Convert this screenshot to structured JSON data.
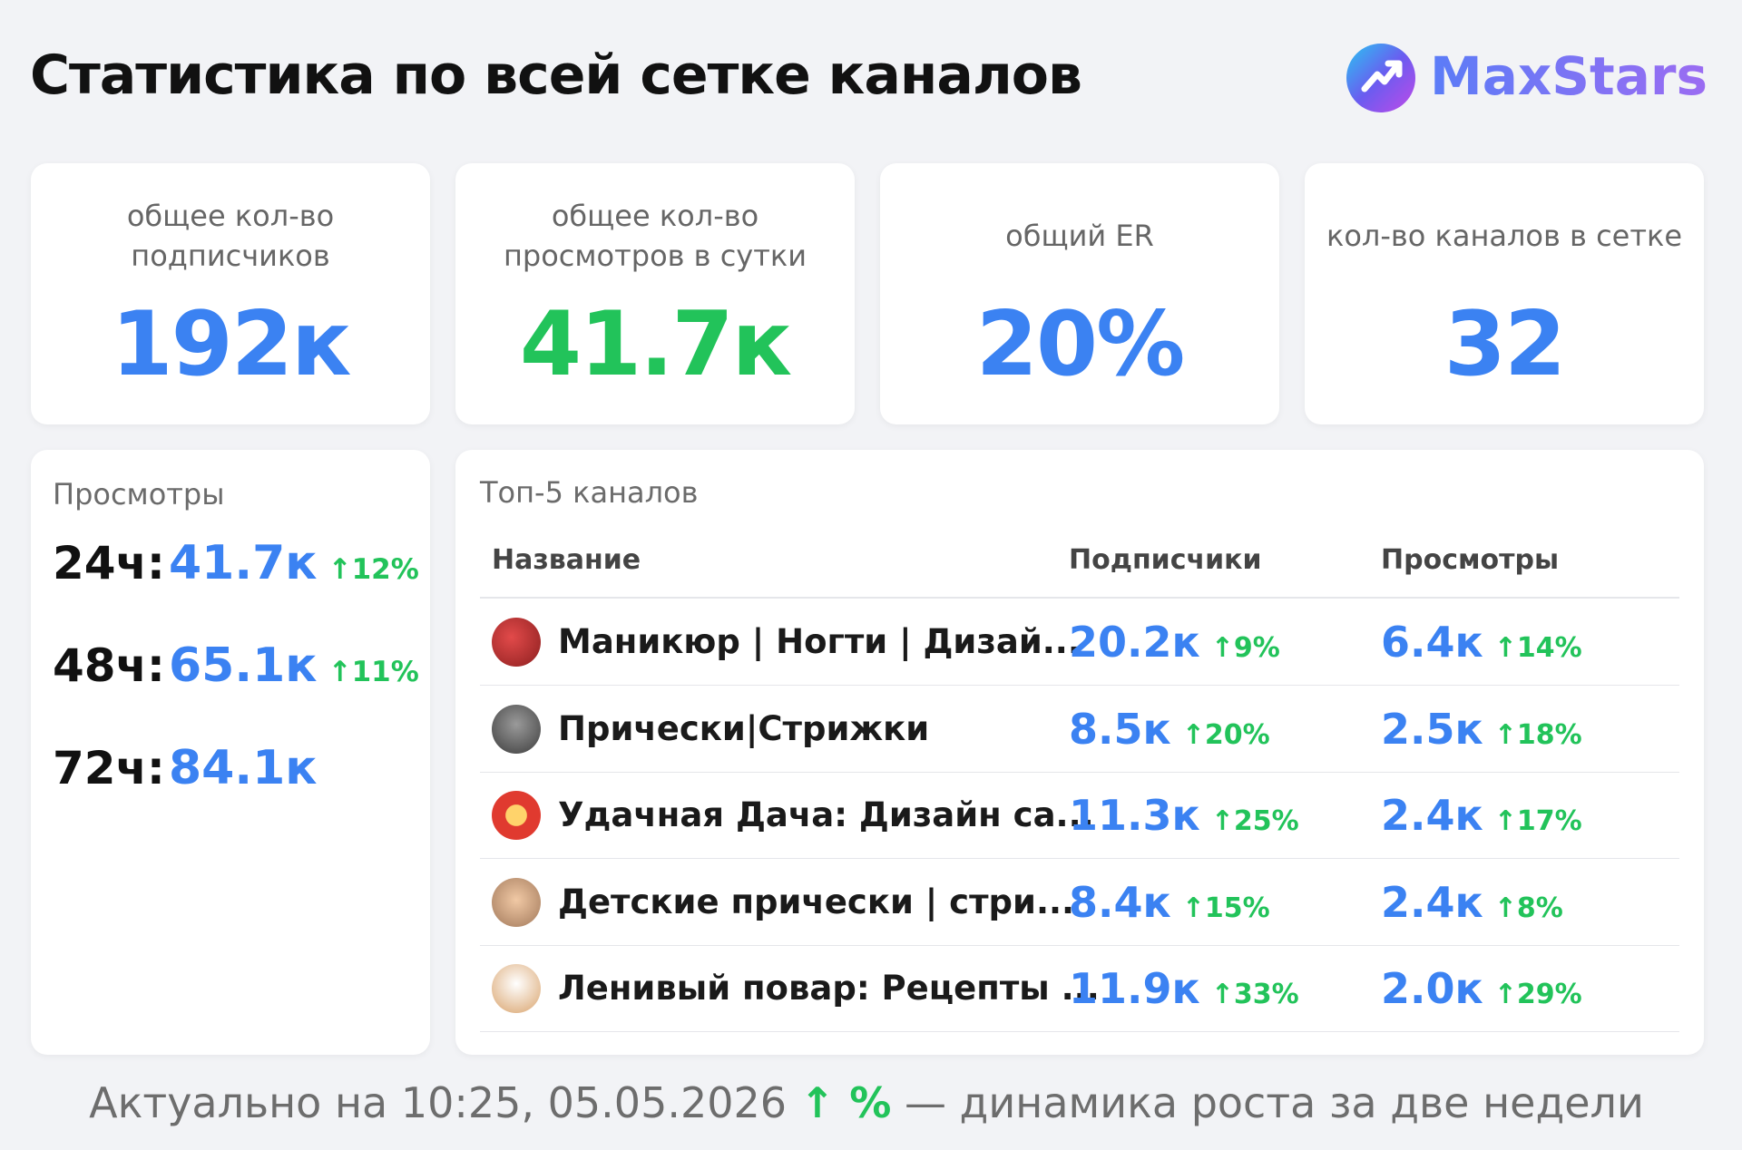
{
  "header": {
    "title": "Статистика по всей сетке каналов",
    "logo": "MaxStars"
  },
  "stats": [
    {
      "label": "общее кол-во подписчиков",
      "value": "192к"
    },
    {
      "label": "общее кол-во просмотров в сутки",
      "value": "41.7к"
    },
    {
      "label": "общий ER",
      "value": "20%"
    },
    {
      "label": "кол-во каналов в сетке",
      "value": "32"
    }
  ],
  "views": {
    "title": "Просмотры",
    "rows": [
      {
        "period": "24ч:",
        "value": "41.7к",
        "delta": "↑12%"
      },
      {
        "period": "48ч:",
        "value": "65.1к",
        "delta": "↑11%"
      },
      {
        "period": "72ч:",
        "value": "84.1к"
      }
    ]
  },
  "top": {
    "title": "Топ-5 каналов",
    "columns": [
      "Название",
      "Подписчики",
      "Просмотры"
    ],
    "rows": [
      {
        "name": "Маникюр | Ногти | Дизай...",
        "subscribers": "20.2к",
        "subscribers_delta": "↑9%",
        "views": "6.4к",
        "views_delta": "↑14%"
      },
      {
        "name": "Прически|Стрижки",
        "subscribers": "8.5к",
        "subscribers_delta": "↑20%",
        "views": "2.5к",
        "views_delta": "↑18%"
      },
      {
        "name": "Удачная Дача: Дизайн са...",
        "subscribers": "11.3к",
        "subscribers_delta": "↑25%",
        "views": "2.4к",
        "views_delta": "↑17%"
      },
      {
        "name": "Детские прически | стри...",
        "subscribers": "8.4к",
        "subscribers_delta": "↑15%",
        "views": "2.4к",
        "views_delta": "↑8%"
      },
      {
        "name": "Ленивый повар: Рецепты ...",
        "subscribers": "11.9к",
        "subscribers_delta": "↑33%",
        "views": "2.0к",
        "views_delta": "↑29%"
      }
    ]
  },
  "footer": {
    "date": "Актуально на 10:25, 05.05.2026",
    "legend": "↑ %",
    "note": "— динамика роста за две недели"
  }
}
